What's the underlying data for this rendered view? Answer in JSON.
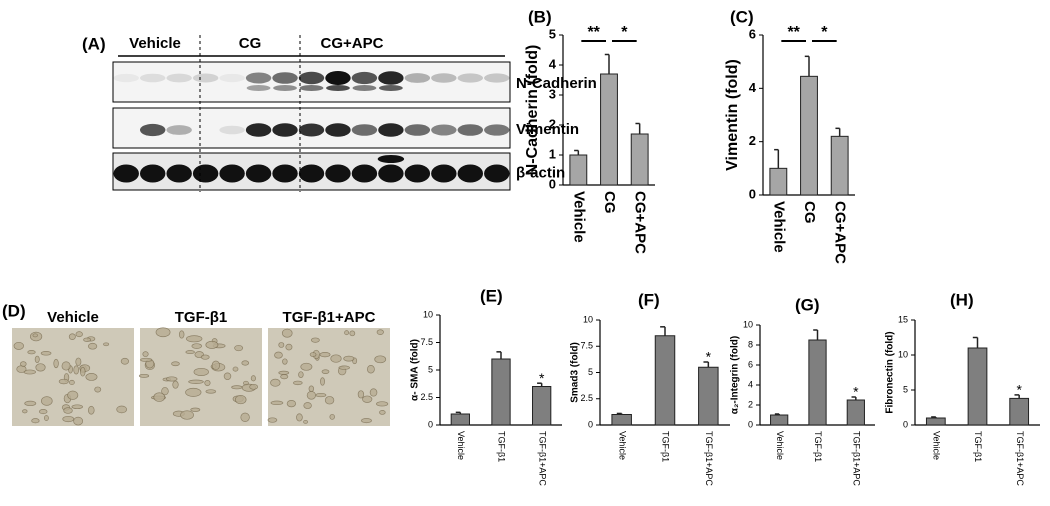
{
  "blot": {
    "label": "(A)",
    "groups": [
      "Vehicle",
      "CG",
      "CG+APC"
    ],
    "proteins": [
      "N-Cadherin",
      "Vimentin",
      "β-actin"
    ]
  },
  "images": {
    "label": "(D)",
    "groups": [
      "Vehicle",
      "TGF-β1",
      "TGF-β1+APC"
    ]
  },
  "chart_data": [
    {
      "type": "bar",
      "label": "(B)",
      "y_label": "N-Cadherin (fold)",
      "categories": [
        "Vehicle",
        "CG",
        "CG+APC"
      ],
      "values": [
        1,
        3.7,
        1.7
      ],
      "errors": [
        0.15,
        0.65,
        0.35
      ],
      "color": "#a6a6a6",
      "ylim": [
        0,
        5
      ],
      "yticks": [
        0,
        1,
        2,
        3,
        4,
        5
      ],
      "brackets": [
        {
          "text": "**",
          "bars": [
            0,
            1
          ]
        },
        {
          "text": "*",
          "bars": [
            1,
            2
          ]
        }
      ]
    },
    {
      "type": "bar",
      "label": "(C)",
      "y_label": "Vimentin (fold)",
      "categories": [
        "Vehicle",
        "CG",
        "CG+APC"
      ],
      "values": [
        1,
        4.45,
        2.2
      ],
      "errors": [
        0.7,
        0.75,
        0.3
      ],
      "color": "#a6a6a6",
      "ylim": [
        0,
        6
      ],
      "yticks": [
        0,
        2,
        4,
        6
      ],
      "brackets": [
        {
          "text": "**",
          "bars": [
            0,
            1
          ]
        },
        {
          "text": "*",
          "bars": [
            1,
            2
          ]
        }
      ]
    },
    {
      "type": "bar",
      "label": "(E)",
      "y_label": "α- SMA (fold)",
      "categories": [
        "Vehicle",
        "TGF-β1",
        "TGF-β1+APC"
      ],
      "values": [
        1,
        6,
        3.5
      ],
      "errors": [
        0.15,
        0.65,
        0.3
      ],
      "color": "#7f7f7f",
      "ylim": [
        0,
        10
      ],
      "yticks": [
        0,
        2.5,
        5,
        7.5,
        10
      ],
      "marks": [
        {
          "text": "*",
          "bar": 2
        }
      ]
    },
    {
      "type": "bar",
      "label": "(F)",
      "y_label": "Smad3 (fold)",
      "categories": [
        "Vehicle",
        "TGF-β1",
        "TGF-β1+APC"
      ],
      "values": [
        1,
        8.5,
        5.5
      ],
      "errors": [
        0.1,
        0.85,
        0.5
      ],
      "color": "#7f7f7f",
      "ylim": [
        0,
        10
      ],
      "yticks": [
        0,
        2.5,
        5,
        7.5,
        10
      ],
      "marks": [
        {
          "text": "*",
          "bar": 2
        }
      ]
    },
    {
      "type": "bar",
      "label": "(G)",
      "y_label": "α₂-Integrin (fold)",
      "categories": [
        "Vehicle",
        "TGF-β1",
        "TGF-β1+APC"
      ],
      "values": [
        1,
        8.5,
        2.5
      ],
      "errors": [
        0.1,
        1,
        0.3
      ],
      "color": "#7f7f7f",
      "ylim": [
        0,
        10
      ],
      "yticks": [
        0,
        2,
        4,
        6,
        8,
        10
      ],
      "marks": [
        {
          "text": "*",
          "bar": 2
        }
      ]
    },
    {
      "type": "bar",
      "label": "(H)",
      "y_label": "Fibronectin (fold)",
      "categories": [
        "Vehicle",
        "TGF-β1",
        "TGF-β1+APC"
      ],
      "values": [
        1,
        11,
        3.8
      ],
      "errors": [
        0.15,
        1.5,
        0.5
      ],
      "color": "#7f7f7f",
      "ylim": [
        0,
        15
      ],
      "yticks": [
        0,
        5,
        10,
        15
      ],
      "marks": [
        {
          "text": "*",
          "bar": 2
        }
      ]
    }
  ]
}
